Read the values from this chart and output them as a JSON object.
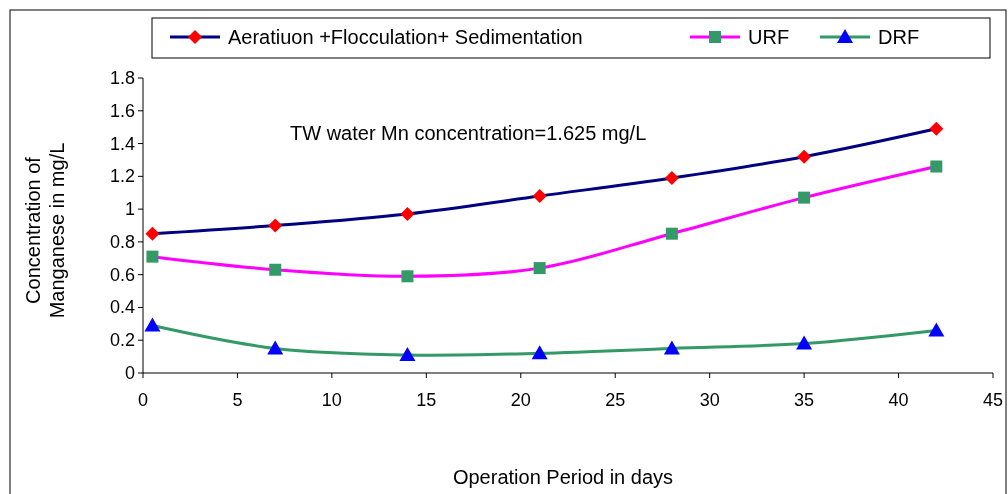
{
  "chart_data": {
    "type": "line",
    "xlabel": "Operation Period in days",
    "ylabel": "Concentration of Manganese in mg/L",
    "annotations": [
      "TW water Mn concentration=1.625 mg/L"
    ],
    "x": [
      0.5,
      7,
      14,
      21,
      28,
      35,
      42
    ],
    "series": [
      {
        "name": "Aeratiuon +Flocculation+ Sedimentation",
        "color": "#000080",
        "marker": "diamond",
        "colors": [
          "#ff0000",
          "#ff0000",
          "#ff0000",
          "#ff0000",
          "#ff0000",
          "#ff0000",
          "#ff0000"
        ],
        "values": [
          0.85,
          0.9,
          0.97,
          1.08,
          1.19,
          1.32,
          1.49
        ]
      },
      {
        "name": "URF",
        "color": "#ff00ff",
        "marker": "square",
        "colors": [
          "#339966",
          "#339966",
          "#339966",
          "#339966",
          "#339966",
          "#339966",
          "#339966"
        ],
        "values": [
          0.71,
          0.63,
          0.59,
          0.64,
          0.85,
          1.07,
          1.26
        ]
      },
      {
        "name": "DRF",
        "color": "#339966",
        "marker": "triangle",
        "colors": [
          "#0000ff",
          "#0000ff",
          "#0000ff",
          "#0000ff",
          "#0000ff",
          "#0000ff",
          "#0000ff"
        ],
        "values": [
          0.29,
          0.15,
          0.11,
          0.12,
          0.15,
          0.18,
          0.26
        ]
      }
    ],
    "xlim": [
      0,
      45
    ],
    "xticks": [
      0,
      5,
      10,
      15,
      20,
      25,
      30,
      35,
      40,
      45
    ],
    "ylim": [
      0,
      1.8
    ],
    "yticks": [
      0,
      0.2,
      0.4,
      0.6,
      0.8,
      1,
      1.2,
      1.4,
      1.6,
      1.8
    ],
    "grid": false,
    "legend": "top",
    "line_style": "solid"
  }
}
